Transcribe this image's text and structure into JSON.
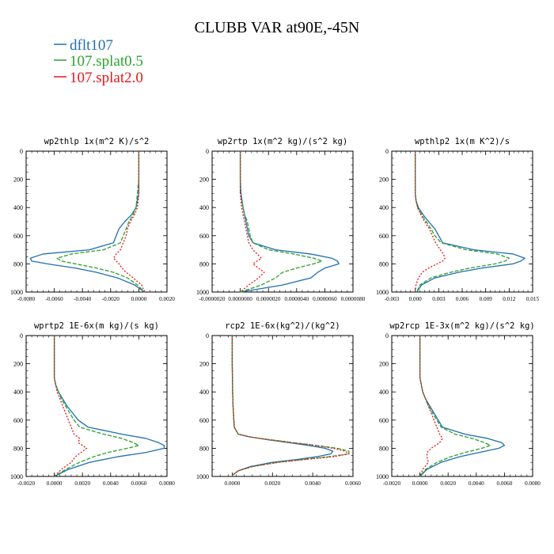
{
  "figure": {
    "title": "CLUBB VAR at90E,-45N",
    "legend": [
      {
        "label": "dflt107",
        "color": "#1f6fb0"
      },
      {
        "label": "107.splat0.5",
        "color": "#2ca02c"
      },
      {
        "label": "107.splat2.0",
        "color": "#e8151b"
      }
    ]
  },
  "chart_data": [
    {
      "type": "line",
      "title": "wp2thlp   1x(m^2 K)/s^2",
      "xlim": [
        -0.008,
        0.002
      ],
      "ylim": [
        1000,
        0
      ],
      "xticks": [
        -0.008,
        -0.006,
        -0.004,
        -0.002,
        0.0,
        0.002
      ],
      "xticklabels": [
        "-0.0080",
        "-0.0060",
        "-0.0040",
        "-0.0020",
        "0.0000",
        "0.0020"
      ],
      "yticks": [
        0,
        200,
        400,
        600,
        800,
        1000
      ],
      "yticklabels": [
        "0",
        "200",
        "400",
        "600",
        "800",
        "1000"
      ],
      "y": [
        0,
        100,
        200,
        300,
        400,
        450,
        500,
        550,
        600,
        650,
        700,
        730,
        760,
        780,
        800,
        830,
        860,
        900,
        950,
        1000
      ],
      "series": [
        {
          "name": "dflt107",
          "values": [
            0.0,
            0.0,
            0.0,
            0.0,
            -0.0002,
            -0.0005,
            -0.001,
            -0.0014,
            -0.0016,
            -0.0018,
            -0.0035,
            -0.0068,
            -0.0077,
            -0.0076,
            -0.0065,
            -0.0045,
            -0.003,
            -0.0015,
            -0.0003,
            0.0004
          ]
        },
        {
          "name": "107.splat0.5",
          "values": [
            0.0,
            0.0,
            0.0,
            -0.0001,
            -0.0002,
            -0.0004,
            -0.0007,
            -0.0009,
            -0.0011,
            -0.0013,
            -0.0025,
            -0.0048,
            -0.0058,
            -0.0055,
            -0.0045,
            -0.003,
            -0.0018,
            -0.0008,
            -0.0001,
            0.0004
          ]
        },
        {
          "name": "107.splat2.0",
          "values": [
            0.0,
            0.0,
            0.0,
            0.0,
            -0.0001,
            -0.0003,
            -0.0006,
            -0.0008,
            -0.0009,
            -0.0011,
            -0.0013,
            -0.0016,
            -0.0018,
            -0.0016,
            -0.0014,
            -0.0012,
            -0.0009,
            -0.0004,
            0.0002,
            0.0004
          ]
        }
      ]
    },
    {
      "type": "line",
      "title": "wp2rtp   1x(m^2 kg)/(s^2 kg)",
      "xlim": [
        -2e-06,
        8e-06
      ],
      "ylim": [
        1000,
        0
      ],
      "xticks": [
        -2e-06,
        0.0,
        2e-06,
        4e-06,
        6e-06,
        8e-06
      ],
      "xticklabels": [
        "-0.0000020",
        "0.0000000",
        "0.0000020",
        "0.0000040",
        "0.0000060",
        "0.0000080"
      ],
      "yticks": [
        0,
        200,
        400,
        600,
        800,
        1000
      ],
      "yticklabels": [
        "0",
        "200",
        "400",
        "600",
        "800",
        "1000"
      ],
      "y": [
        0,
        100,
        200,
        300,
        400,
        450,
        500,
        550,
        600,
        650,
        700,
        730,
        760,
        780,
        800,
        830,
        860,
        900,
        950,
        1000
      ],
      "series": [
        {
          "name": "dflt107",
          "values": [
            0.0,
            0.0,
            0.0,
            5e-08,
            2e-07,
            3e-07,
            4e-07,
            5e-07,
            6e-07,
            9e-07,
            2.5e-06,
            5e-06,
            6.5e-06,
            6.9e-06,
            7e-06,
            6e-06,
            5.5e-06,
            5e-06,
            3e-06,
            0.0
          ]
        },
        {
          "name": "107.splat0.5",
          "values": [
            0.0,
            0.0,
            0.0,
            0.0,
            2e-07,
            3e-07,
            5e-07,
            6e-07,
            7e-07,
            9e-07,
            2e-06,
            3.8e-06,
            5.2e-06,
            5.8e-06,
            5.2e-06,
            4e-06,
            3e-06,
            2.5e-06,
            1.5e-06,
            0.0
          ]
        },
        {
          "name": "107.splat2.0",
          "values": [
            0.0,
            0.0,
            0.0,
            0.0,
            1e-07,
            2e-07,
            3e-07,
            4e-07,
            5e-07,
            6e-07,
            9e-07,
            1.2e-06,
            1.5e-06,
            1.2e-06,
            9e-07,
            1.3e-06,
            1.7e-06,
            1.3e-06,
            6e-07,
            0.0
          ]
        }
      ]
    },
    {
      "type": "line",
      "title": "wpthlp2   1x(m K^2)/s",
      "xlim": [
        -0.003,
        0.015
      ],
      "ylim": [
        1000,
        0
      ],
      "xticks": [
        -0.003,
        0.0,
        0.003,
        0.006,
        0.009,
        0.012,
        0.015
      ],
      "xticklabels": [
        "-0.003",
        "0.000",
        "0.003",
        "0.006",
        "0.009",
        "0.012",
        "0.015"
      ],
      "yticks": [
        0,
        200,
        400,
        600,
        800,
        1000
      ],
      "yticklabels": [
        "0",
        "200",
        "400",
        "600",
        "800",
        "1000"
      ],
      "y": [
        0,
        100,
        200,
        300,
        350,
        400,
        450,
        500,
        550,
        600,
        650,
        700,
        730,
        760,
        780,
        800,
        830,
        860,
        900,
        950,
        1000
      ],
      "series": [
        {
          "name": "dflt107",
          "values": [
            0.0,
            0.0,
            0.0,
            0.0,
            0.0001,
            0.0004,
            0.001,
            0.0017,
            0.0025,
            0.003,
            0.0035,
            0.0075,
            0.0125,
            0.014,
            0.0135,
            0.0125,
            0.0085,
            0.0055,
            0.0025,
            0.0008,
            0.0002
          ]
        },
        {
          "name": "107.splat0.5",
          "values": [
            0.0,
            0.0,
            0.0,
            0.0,
            0.0001,
            0.0003,
            0.0008,
            0.0014,
            0.002,
            0.0025,
            0.0033,
            0.0065,
            0.0105,
            0.012,
            0.0115,
            0.0102,
            0.007,
            0.0045,
            0.002,
            0.0006,
            0.0002
          ]
        },
        {
          "name": "107.splat2.0",
          "values": [
            0.0,
            0.0,
            0.0,
            0.0,
            0.0001,
            0.0003,
            0.0007,
            0.0012,
            0.0018,
            0.0022,
            0.0026,
            0.0032,
            0.0036,
            0.0038,
            0.0035,
            0.0028,
            0.0017,
            0.0009,
            0.0004,
            0.0001,
            0.0
          ]
        }
      ]
    },
    {
      "type": "line",
      "title": "wprtp2   1E-6x(m kg)/(s kg)",
      "xlim": [
        -0.002,
        0.008
      ],
      "ylim": [
        1000,
        0
      ],
      "xticks": [
        -0.002,
        0.0,
        0.002,
        0.004,
        0.006,
        0.008
      ],
      "xticklabels": [
        "-0.0020",
        "0.0000",
        "0.0020",
        "0.0040",
        "0.0060",
        "0.0080"
      ],
      "yticks": [
        0,
        200,
        400,
        600,
        800,
        1000
      ],
      "yticklabels": [
        "0",
        "200",
        "400",
        "600",
        "800",
        "1000"
      ],
      "y": [
        0,
        100,
        200,
        300,
        350,
        400,
        450,
        500,
        550,
        600,
        650,
        700,
        730,
        760,
        780,
        800,
        830,
        860,
        900,
        950,
        1000
      ],
      "series": [
        {
          "name": "dflt107",
          "values": [
            0.0,
            0.0,
            0.0,
            0.0,
            0.0001,
            0.0003,
            0.0006,
            0.0009,
            0.0013,
            0.0017,
            0.0024,
            0.0048,
            0.0065,
            0.0074,
            0.0078,
            0.0078,
            0.0065,
            0.0045,
            0.0025,
            0.001,
            0.0
          ]
        },
        {
          "name": "107.splat0.5",
          "values": [
            0.0,
            0.0,
            0.0,
            0.0,
            0.0001,
            0.0003,
            0.0005,
            0.0008,
            0.0011,
            0.0014,
            0.0018,
            0.0035,
            0.0048,
            0.0056,
            0.006,
            0.0052,
            0.0038,
            0.0028,
            0.0018,
            0.0008,
            0.0
          ]
        },
        {
          "name": "107.splat2.0",
          "values": [
            0.0,
            0.0,
            0.0,
            0.0,
            0.0001,
            0.0002,
            0.0004,
            0.0006,
            0.0008,
            0.001,
            0.0012,
            0.0014,
            0.0018,
            0.0017,
            0.002,
            0.0023,
            0.0019,
            0.0015,
            0.0012,
            0.0005,
            0.0
          ]
        }
      ]
    },
    {
      "type": "line",
      "title": "rcp2   1E-6x(kg^2)/(kg^2)",
      "xlim": [
        -0.001,
        0.006
      ],
      "ylim": [
        1000,
        0
      ],
      "xticks": [
        0.0,
        0.002,
        0.004,
        0.006
      ],
      "xticklabels": [
        "0.0000",
        "0.0020",
        "0.0040",
        "0.0060"
      ],
      "yticks": [
        0,
        200,
        400,
        600,
        800,
        1000
      ],
      "yticklabels": [
        "0",
        "200",
        "400",
        "600",
        "800",
        "1000"
      ],
      "y": [
        0,
        100,
        200,
        300,
        400,
        500,
        600,
        650,
        700,
        720,
        740,
        760,
        780,
        800,
        820,
        840,
        860,
        880,
        900,
        930,
        960,
        990,
        1000
      ],
      "series": [
        {
          "name": "dflt107",
          "values": [
            0.0,
            0.0,
            0.0,
            1e-05,
            2e-05,
            4e-05,
            8e-05,
            0.0001,
            0.0003,
            0.0009,
            0.0018,
            0.0028,
            0.0038,
            0.0046,
            0.005,
            0.0049,
            0.0042,
            0.0032,
            0.002,
            0.0009,
            0.0003,
            2e-05,
            0.0
          ]
        },
        {
          "name": "107.splat0.5",
          "values": [
            0.0,
            0.0,
            0.0,
            1e-05,
            2e-05,
            4e-05,
            8e-05,
            0.0001,
            0.0003,
            0.0009,
            0.0019,
            0.003,
            0.0042,
            0.0052,
            0.0058,
            0.0058,
            0.0048,
            0.0035,
            0.0022,
            0.001,
            0.0003,
            2e-05,
            0.0
          ]
        },
        {
          "name": "107.splat2.0",
          "values": [
            0.0,
            0.0,
            0.0,
            1e-05,
            2e-05,
            4e-05,
            8e-05,
            0.0001,
            0.0003,
            0.0009,
            0.0019,
            0.003,
            0.0041,
            0.005,
            0.0056,
            0.0058,
            0.005,
            0.0036,
            0.0023,
            0.001,
            0.0003,
            2e-05,
            0.0
          ]
        }
      ]
    },
    {
      "type": "line",
      "title": "wp2rcp   1E-3x(m^2 kg)/(s^2 kg)",
      "xlim": [
        -0.002,
        0.008
      ],
      "ylim": [
        1000,
        0
      ],
      "xticks": [
        -0.002,
        0.0,
        0.002,
        0.004,
        0.006,
        0.008
      ],
      "xticklabels": [
        "-0.0020",
        "0.0000",
        "0.0020",
        "0.0040",
        "0.0060",
        "0.0080"
      ],
      "yticks": [
        0,
        200,
        400,
        600,
        800,
        1000
      ],
      "yticklabels": [
        "0",
        "200",
        "400",
        "600",
        "800",
        "1000"
      ],
      "y": [
        0,
        100,
        200,
        300,
        350,
        400,
        450,
        500,
        550,
        600,
        650,
        700,
        730,
        760,
        780,
        800,
        830,
        860,
        900,
        950,
        1000
      ],
      "series": [
        {
          "name": "dflt107",
          "values": [
            0.0,
            0.0,
            0.0,
            0.0,
            0.0001,
            0.0002,
            0.0004,
            0.0007,
            0.001,
            0.0013,
            0.0016,
            0.0032,
            0.0048,
            0.0058,
            0.006,
            0.0056,
            0.0042,
            0.0028,
            0.0015,
            0.0005,
            0.0
          ]
        },
        {
          "name": "107.splat0.5",
          "values": [
            0.0,
            0.0,
            0.0,
            0.0,
            0.0001,
            0.0002,
            0.0004,
            0.0006,
            0.0009,
            0.0012,
            0.0015,
            0.0025,
            0.0037,
            0.0046,
            0.005,
            0.0044,
            0.0032,
            0.0022,
            0.0012,
            0.0004,
            0.0
          ]
        },
        {
          "name": "107.splat2.0",
          "values": [
            0.0,
            0.0,
            0.0,
            0.0,
            0.0001,
            0.0002,
            0.0004,
            0.0006,
            0.0008,
            0.001,
            0.0012,
            0.0014,
            0.0016,
            0.0014,
            0.0011,
            0.0008,
            0.0005,
            0.0005,
            0.0006,
            0.0002,
            0.0
          ]
        }
      ]
    }
  ]
}
